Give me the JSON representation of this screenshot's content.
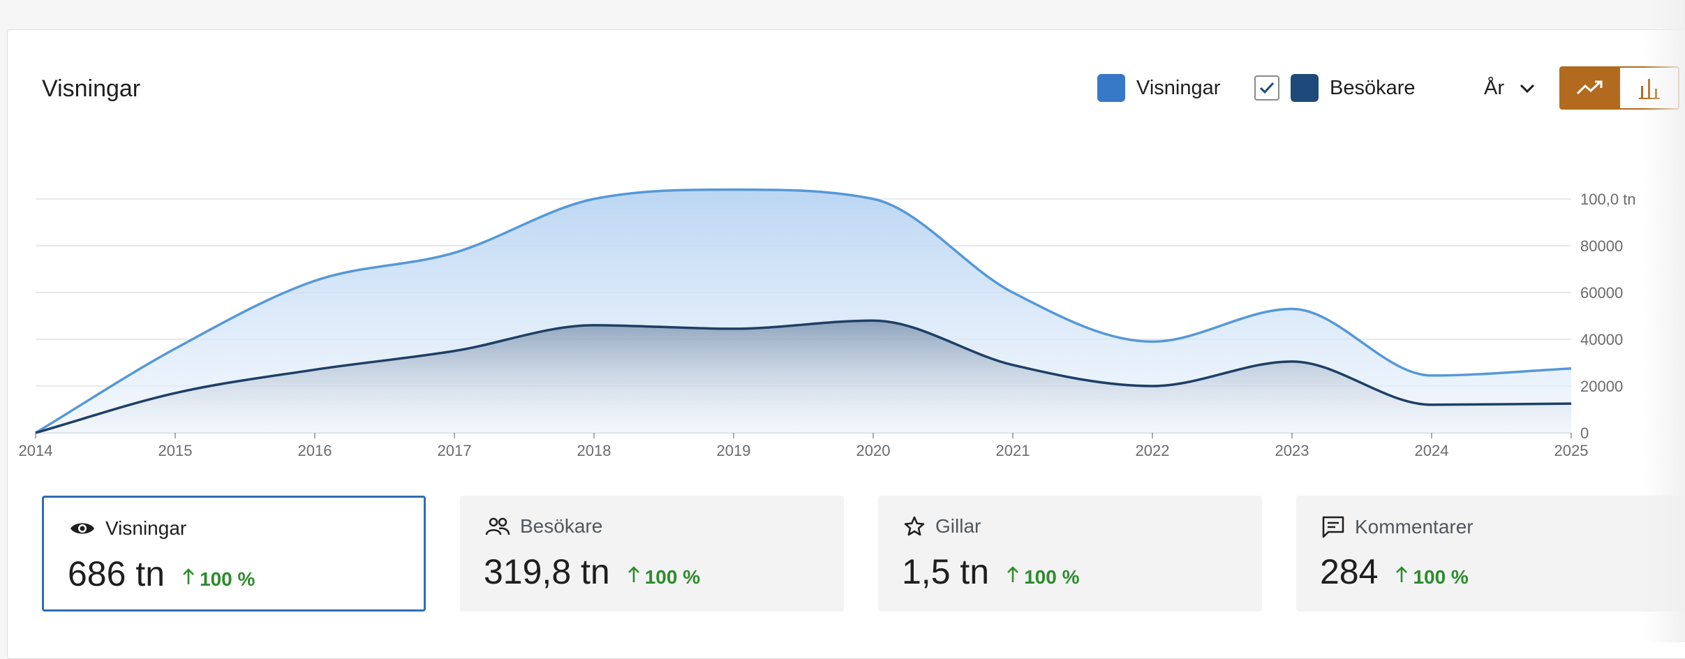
{
  "header": {
    "title": "Visningar"
  },
  "legend": {
    "series1": {
      "label": "Visningar",
      "color": "#3778c7"
    },
    "series2": {
      "label": "Besökare",
      "color": "#1e4a7a",
      "checked": true
    }
  },
  "period": {
    "label": "År",
    "icon": "chevron-down-icon"
  },
  "view_toggle": {
    "active": "line",
    "options": [
      "line-chart-icon",
      "bar-chart-icon"
    ],
    "accent": "#b26a1e"
  },
  "chart_data": {
    "type": "area",
    "x": [
      "2014",
      "2015",
      "2016",
      "2017",
      "2018",
      "2019",
      "2020",
      "2021",
      "2022",
      "2023",
      "2024",
      "2025"
    ],
    "yticks": [
      "0",
      "20000",
      "40000",
      "60000",
      "80000",
      "100,0 tn"
    ],
    "ylim": [
      0,
      100000
    ],
    "series": [
      {
        "name": "Visningar",
        "color": "#5598d8",
        "values": [
          0,
          36000,
          65000,
          77000,
          100000,
          104000,
          100000,
          60000,
          39000,
          53000,
          24500,
          27500
        ]
      },
      {
        "name": "Besökare",
        "color": "#1e3f66",
        "values": [
          0,
          17000,
          27000,
          35000,
          46000,
          44500,
          48000,
          29000,
          20000,
          30500,
          12000,
          12500
        ]
      }
    ]
  },
  "stats": [
    {
      "label": "Visningar",
      "icon": "eye-icon",
      "value": "686 tn",
      "delta": "100 %",
      "active": true
    },
    {
      "label": "Besökare",
      "icon": "people-icon",
      "value": "319,8 tn",
      "delta": "100 %",
      "active": false
    },
    {
      "label": "Gillar",
      "icon": "star-icon",
      "value": "1,5 tn",
      "delta": "100 %",
      "active": false
    },
    {
      "label": "Kommentarer",
      "icon": "comment-icon",
      "value": "284",
      "delta": "100 %",
      "active": false
    }
  ]
}
